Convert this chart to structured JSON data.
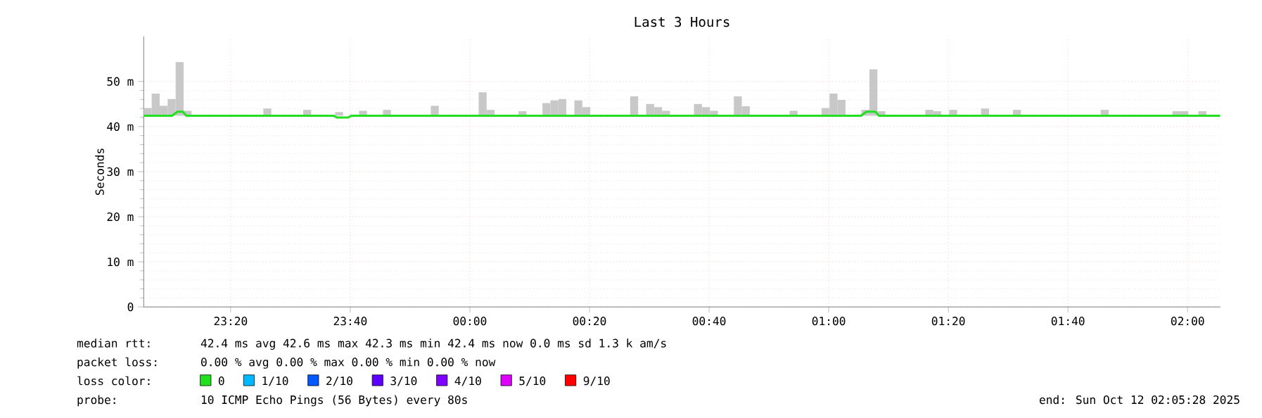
{
  "chart_data": {
    "type": "bar",
    "title": "Last 3 Hours",
    "ylabel": "Seconds",
    "legend_title": "loss color:",
    "legend": "bottom",
    "grid": true,
    "xlim": [
      "2025-10-11T23:05:28",
      "2025-10-12T02:05:28"
    ],
    "ylim": [
      0,
      60
    ],
    "xticks": [
      {
        "value": "2025-10-11T23:20",
        "label": "23:20"
      },
      {
        "value": "2025-10-11T23:40",
        "label": "23:40"
      },
      {
        "value": "2025-10-12T00:00",
        "label": "00:00"
      },
      {
        "value": "2025-10-12T00:20",
        "label": "00:20"
      },
      {
        "value": "2025-10-12T00:40",
        "label": "00:40"
      },
      {
        "value": "2025-10-12T01:00",
        "label": "01:00"
      },
      {
        "value": "2025-10-12T01:20",
        "label": "01:20"
      },
      {
        "value": "2025-10-12T01:40",
        "label": "01:40"
      },
      {
        "value": "2025-10-12T02:00",
        "label": "02:00"
      }
    ],
    "yticks": [
      0,
      {
        "value": 10,
        "label": "10 m"
      },
      {
        "value": 20,
        "label": "20 m"
      },
      {
        "value": 30,
        "label": "30 m"
      },
      {
        "value": 40,
        "label": "40 m"
      },
      {
        "value": 50,
        "label": "50 m"
      }
    ],
    "x": [
      "2025-10-11T23:06:08",
      "2025-10-11T23:07:28",
      "2025-10-11T23:08:48",
      "2025-10-11T23:10:08",
      "2025-10-11T23:11:28",
      "2025-10-11T23:12:48",
      "2025-10-11T23:26:08",
      "2025-10-11T23:32:48",
      "2025-10-11T23:38:08",
      "2025-10-11T23:42:08",
      "2025-10-11T23:46:08",
      "2025-10-11T23:54:08",
      "2025-10-12T00:02:08",
      "2025-10-12T00:03:28",
      "2025-10-12T00:08:48",
      "2025-10-12T00:12:48",
      "2025-10-12T00:14:08",
      "2025-10-12T00:15:28",
      "2025-10-12T00:18:08",
      "2025-10-12T00:19:28",
      "2025-10-12T00:27:28",
      "2025-10-12T00:30:08",
      "2025-10-12T00:31:28",
      "2025-10-12T00:32:48",
      "2025-10-12T00:38:08",
      "2025-10-12T00:39:28",
      "2025-10-12T00:40:48",
      "2025-10-12T00:44:48",
      "2025-10-12T00:46:08",
      "2025-10-12T00:54:08",
      "2025-10-12T00:59:28",
      "2025-10-12T01:00:48",
      "2025-10-12T01:02:08",
      "2025-10-12T01:06:08",
      "2025-10-12T01:07:28",
      "2025-10-12T01:08:48",
      "2025-10-12T01:16:48",
      "2025-10-12T01:18:08",
      "2025-10-12T01:20:48",
      "2025-10-12T01:26:08",
      "2025-10-12T01:31:28",
      "2025-10-12T01:46:08",
      "2025-10-12T01:58:08",
      "2025-10-12T01:59:28",
      "2025-10-12T02:02:28"
    ],
    "series": [
      {
        "color": "#c8c8c8",
        "base": [
          42.4,
          42.4,
          42.4,
          42.4,
          42.4,
          42.4,
          42.4,
          42.4,
          42.4,
          42.4,
          42.4,
          42.4,
          42.4,
          42.4,
          42.4,
          42.4,
          42.4,
          42.4,
          42.4,
          42.4,
          42.4,
          42.4,
          42.4,
          42.4,
          42.4,
          42.4,
          42.4,
          42.4,
          42.4,
          42.4,
          42.4,
          42.4,
          42.4,
          42.4,
          42.4,
          42.4,
          42.4,
          42.4,
          42.4,
          42.4,
          42.4,
          42.4,
          42.4,
          42.4,
          42.4
        ],
        "values": [
          1.7,
          4.9,
          2.2,
          3.7,
          11.9,
          1.1,
          1.6,
          1.3,
          0.8,
          1.1,
          1.3,
          2.2,
          5.2,
          1.3,
          1.0,
          2.8,
          3.4,
          3.7,
          3.4,
          1.9,
          4.3,
          2.6,
          1.9,
          1.1,
          2.6,
          1.9,
          1.1,
          4.3,
          2.1,
          1.1,
          1.7,
          4.9,
          3.5,
          1.3,
          10.3,
          1.0,
          1.3,
          1.0,
          1.3,
          1.6,
          1.3,
          1.3,
          1.0,
          1.0,
          1.0
        ]
      },
      {
        "type": "line",
        "name": "0",
        "color": "#20e020",
        "x": [
          "2025-10-11T23:05:28",
          "2025-10-11T23:10:12",
          "2025-10-11T23:11:06",
          "2025-10-11T23:12:00",
          "2025-10-11T23:12:36",
          "2025-10-11T23:37:12",
          "2025-10-11T23:37:48",
          "2025-10-11T23:39:36",
          "2025-10-11T23:40:12",
          "2025-10-12T01:05:24",
          "2025-10-12T01:06:18",
          "2025-10-12T01:07:48",
          "2025-10-12T01:08:24",
          "2025-10-12T02:05:28"
        ],
        "values": [
          42.4,
          42.4,
          43.3,
          43.3,
          42.4,
          42.4,
          42.0,
          42.0,
          42.4,
          42.4,
          43.3,
          43.3,
          42.4,
          42.4
        ]
      },
      {
        "type": "line",
        "name": "1/10",
        "color": "#00b8ff",
        "values": [
          null,
          null,
          null,
          null,
          null,
          null,
          null,
          null,
          null,
          null,
          null,
          null,
          null,
          null,
          null,
          null,
          null,
          null,
          null,
          null,
          null,
          null,
          null,
          null,
          null,
          null,
          null,
          null,
          null,
          null,
          null,
          null,
          null,
          null,
          null,
          null,
          null,
          null,
          null,
          null,
          null,
          null,
          null,
          null,
          null
        ]
      },
      {
        "type": "line",
        "name": "2/10",
        "color": "#0059ff",
        "values": [
          null,
          null,
          null,
          null,
          null,
          null,
          null,
          null,
          null,
          null,
          null,
          null,
          null,
          null,
          null,
          null,
          null,
          null,
          null,
          null,
          null,
          null,
          null,
          null,
          null,
          null,
          null,
          null,
          null,
          null,
          null,
          null,
          null,
          null,
          null,
          null,
          null,
          null,
          null,
          null,
          null,
          null,
          null,
          null,
          null
        ]
      },
      {
        "type": "line",
        "name": "3/10",
        "color": "#5e00ff",
        "values": [
          null,
          null,
          null,
          null,
          null,
          null,
          null,
          null,
          null,
          null,
          null,
          null,
          null,
          null,
          null,
          null,
          null,
          null,
          null,
          null,
          null,
          null,
          null,
          null,
          null,
          null,
          null,
          null,
          null,
          null,
          null,
          null,
          null,
          null,
          null,
          null,
          null,
          null,
          null,
          null,
          null,
          null,
          null,
          null,
          null
        ]
      },
      {
        "type": "line",
        "name": "4/10",
        "color": "#7e00ff",
        "values": [
          null,
          null,
          null,
          null,
          null,
          null,
          null,
          null,
          null,
          null,
          null,
          null,
          null,
          null,
          null,
          null,
          null,
          null,
          null,
          null,
          null,
          null,
          null,
          null,
          null,
          null,
          null,
          null,
          null,
          null,
          null,
          null,
          null,
          null,
          null,
          null,
          null,
          null,
          null,
          null,
          null,
          null,
          null,
          null,
          null
        ]
      },
      {
        "type": "line",
        "name": "5/10",
        "color": "#dd00ff",
        "values": [
          null,
          null,
          null,
          null,
          null,
          null,
          null,
          null,
          null,
          null,
          null,
          null,
          null,
          null,
          null,
          null,
          null,
          null,
          null,
          null,
          null,
          null,
          null,
          null,
          null,
          null,
          null,
          null,
          null,
          null,
          null,
          null,
          null,
          null,
          null,
          null,
          null,
          null,
          null,
          null,
          null,
          null,
          null,
          null,
          null
        ]
      },
      {
        "type": "line",
        "name": "9/10",
        "color": "#ff0000",
        "values": [
          null,
          null,
          null,
          null,
          null,
          null,
          null,
          null,
          null,
          null,
          null,
          null,
          null,
          null,
          null,
          null,
          null,
          null,
          null,
          null,
          null,
          null,
          null,
          null,
          null,
          null,
          null,
          null,
          null,
          null,
          null,
          null,
          null,
          null,
          null,
          null,
          null,
          null,
          null,
          null,
          null,
          null,
          null,
          null,
          null
        ]
      }
    ],
    "annotations": [
      "median rtt:",
      "42.4 ms avg 42.6 ms max 42.3 ms min 42.4 ms now 0.0 ms sd 1.3 k am/s",
      "packet loss:",
      "0.00 % avg 0.00 % max 0.00 % min 0.00 % now",
      "probe:",
      "10 ICMP Echo Pings (56 Bytes) every 80s",
      "end: Sun Oct 12 02:05:28 2025"
    ]
  }
}
